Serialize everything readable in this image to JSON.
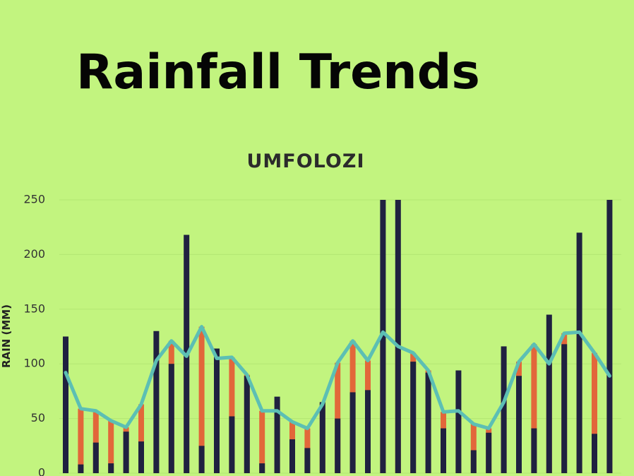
{
  "title": "Rainfall Trends",
  "chart_data": {
    "type": "bar",
    "title": "UMFOLOZI",
    "ylabel": "RAIN (MM)",
    "categories": [
      null,
      null,
      null,
      null,
      null,
      null,
      null,
      null,
      null,
      null,
      null,
      null,
      null,
      null,
      null,
      null,
      null,
      null,
      null,
      null,
      null,
      null,
      null,
      null,
      null,
      null,
      null,
      null,
      null,
      null,
      null,
      null,
      null,
      null,
      null,
      null,
      null
    ],
    "ylim": [
      0,
      250
    ],
    "yticks": [
      0,
      50,
      100,
      150,
      200,
      250
    ],
    "grid": true,
    "series": [
      {
        "type": "bar",
        "color": "#e2673a",
        "values": [
          92,
          59,
          57,
          48,
          42,
          63,
          103,
          121,
          107,
          134,
          105,
          106,
          90,
          57,
          57,
          47,
          41,
          63,
          101,
          121,
          103,
          129,
          116,
          110,
          94,
          56,
          57,
          45,
          41,
          65,
          102,
          118,
          100,
          128,
          129,
          110,
          89
        ]
      },
      {
        "type": "bar",
        "color": "#1f2140",
        "values": [
          125,
          8,
          28,
          9,
          38,
          29,
          130,
          100,
          218,
          25,
          114,
          52,
          89,
          9,
          70,
          31,
          23,
          65,
          50,
          74,
          76,
          250,
          250,
          102,
          92,
          41,
          94,
          21,
          37,
          116,
          89,
          41,
          145,
          118,
          220,
          36,
          250
        ]
      },
      {
        "type": "line",
        "color": "#5cbfb4",
        "values": [
          92,
          59,
          57,
          48,
          42,
          63,
          103,
          121,
          107,
          134,
          105,
          106,
          90,
          57,
          57,
          47,
          41,
          63,
          101,
          121,
          103,
          129,
          116,
          110,
          94,
          56,
          57,
          45,
          41,
          65,
          102,
          118,
          100,
          128,
          129,
          110,
          89
        ]
      }
    ]
  }
}
